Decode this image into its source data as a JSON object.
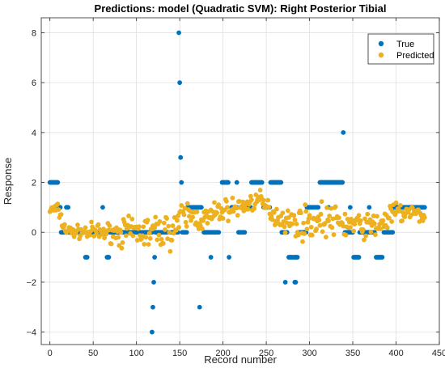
{
  "chart_data": {
    "type": "scatter",
    "title": "Predictions: model (Quadratic SVM): Right Posterior Tibial",
    "xlabel": "Record number",
    "ylabel": "Response",
    "xlim": [
      -10,
      450
    ],
    "ylim": [
      -4.5,
      8.6
    ],
    "xticks": [
      0,
      50,
      100,
      150,
      200,
      250,
      300,
      350,
      400,
      450
    ],
    "yticks": [
      -4,
      -2,
      0,
      2,
      4,
      6,
      8
    ],
    "grid": true,
    "legend": {
      "position": "top-right",
      "entries": [
        "True",
        "Predicted"
      ]
    },
    "colors": {
      "true": "#0072BD",
      "predicted": "#EDB120",
      "grid": "#dcdcdc",
      "axis": "#262626"
    },
    "series": [
      {
        "name": "True",
        "color": "#0072BD",
        "segments": [
          {
            "x0": 0,
            "x1": 9,
            "y": 2
          },
          {
            "x0": 10,
            "x1": 12,
            "y": 1
          },
          {
            "x0": 13,
            "x1": 18,
            "y": 0
          },
          {
            "x0": 19,
            "x1": 21,
            "y": 1
          },
          {
            "x0": 22,
            "x1": 40,
            "y": 0
          },
          {
            "x0": 41,
            "x1": 43,
            "y": -1
          },
          {
            "x0": 44,
            "x1": 63,
            "y": 0
          },
          {
            "x0": 66,
            "x1": 68,
            "y": -1
          },
          {
            "x0": 69,
            "x1": 118,
            "y": 0
          },
          {
            "x0": 122,
            "x1": 148,
            "y": 0
          },
          {
            "x0": 153,
            "x1": 158,
            "y": 0
          },
          {
            "x0": 159,
            "x1": 175,
            "y": 1
          },
          {
            "x0": 178,
            "x1": 195,
            "y": 0
          },
          {
            "x0": 199,
            "x1": 206,
            "y": 2
          },
          {
            "x0": 210,
            "x1": 216,
            "y": 1
          },
          {
            "x0": 218,
            "x1": 225,
            "y": 0
          },
          {
            "x0": 226,
            "x1": 232,
            "y": 1
          },
          {
            "x0": 233,
            "x1": 245,
            "y": 2
          },
          {
            "x0": 247,
            "x1": 254,
            "y": 1
          },
          {
            "x0": 255,
            "x1": 267,
            "y": 2
          },
          {
            "x0": 268,
            "x1": 274,
            "y": 0
          },
          {
            "x0": 276,
            "x1": 280,
            "y": -1
          },
          {
            "x0": 282,
            "x1": 286,
            "y": -1
          },
          {
            "x0": 287,
            "x1": 296,
            "y": 0
          },
          {
            "x0": 297,
            "x1": 310,
            "y": 1
          },
          {
            "x0": 312,
            "x1": 338,
            "y": 2
          },
          {
            "x0": 341,
            "x1": 350,
            "y": 0
          },
          {
            "x0": 351,
            "x1": 357,
            "y": -1
          },
          {
            "x0": 358,
            "x1": 375,
            "y": 0
          },
          {
            "x0": 377,
            "x1": 384,
            "y": -1
          },
          {
            "x0": 386,
            "x1": 396,
            "y": 0
          },
          {
            "x0": 397,
            "x1": 433,
            "y": 1
          }
        ],
        "points": [
          [
            61,
            1
          ],
          [
            118,
            -4
          ],
          [
            119,
            -3
          ],
          [
            120,
            -2
          ],
          [
            121,
            -1
          ],
          [
            149,
            8
          ],
          [
            150,
            6
          ],
          [
            151,
            3
          ],
          [
            152,
            2
          ],
          [
            173,
            -3
          ],
          [
            186,
            -1
          ],
          [
            207,
            -1
          ],
          [
            216,
            2
          ],
          [
            230,
            1
          ],
          [
            238,
            2
          ],
          [
            272,
            -2
          ],
          [
            283,
            -2
          ],
          [
            284,
            -2
          ],
          [
            322,
            1
          ],
          [
            339,
            4
          ],
          [
            347,
            1
          ],
          [
            369,
            1
          ],
          [
            371,
            0
          ],
          [
            401,
            1
          ],
          [
            430,
            1
          ]
        ]
      },
      {
        "name": "Predicted",
        "color": "#EDB120",
        "profile": [
          [
            0,
            0.9
          ],
          [
            10,
            0.9
          ],
          [
            15,
            0.3
          ],
          [
            20,
            0.05
          ],
          [
            40,
            0.0
          ],
          [
            100,
            0.0
          ],
          [
            140,
            0.05
          ],
          [
            150,
            0.5
          ],
          [
            160,
            0.7
          ],
          [
            180,
            0.5
          ],
          [
            200,
            0.9
          ],
          [
            220,
            1.0
          ],
          [
            240,
            1.3
          ],
          [
            260,
            0.7
          ],
          [
            280,
            0.4
          ],
          [
            300,
            0.4
          ],
          [
            320,
            0.5
          ],
          [
            340,
            0.35
          ],
          [
            360,
            0.25
          ],
          [
            380,
            0.3
          ],
          [
            400,
            0.8
          ],
          [
            433,
            0.7
          ]
        ],
        "n": 434,
        "scatter": [
          0.22,
          0.2,
          0.28,
          0.3,
          0.45,
          0.55,
          0.55,
          0.5,
          0.45,
          0.4,
          0.35,
          0.3,
          0.35,
          0.4,
          0.5,
          0.55,
          0.5,
          0.45,
          0.4,
          0.38,
          0.35,
          0.3
        ]
      }
    ]
  }
}
